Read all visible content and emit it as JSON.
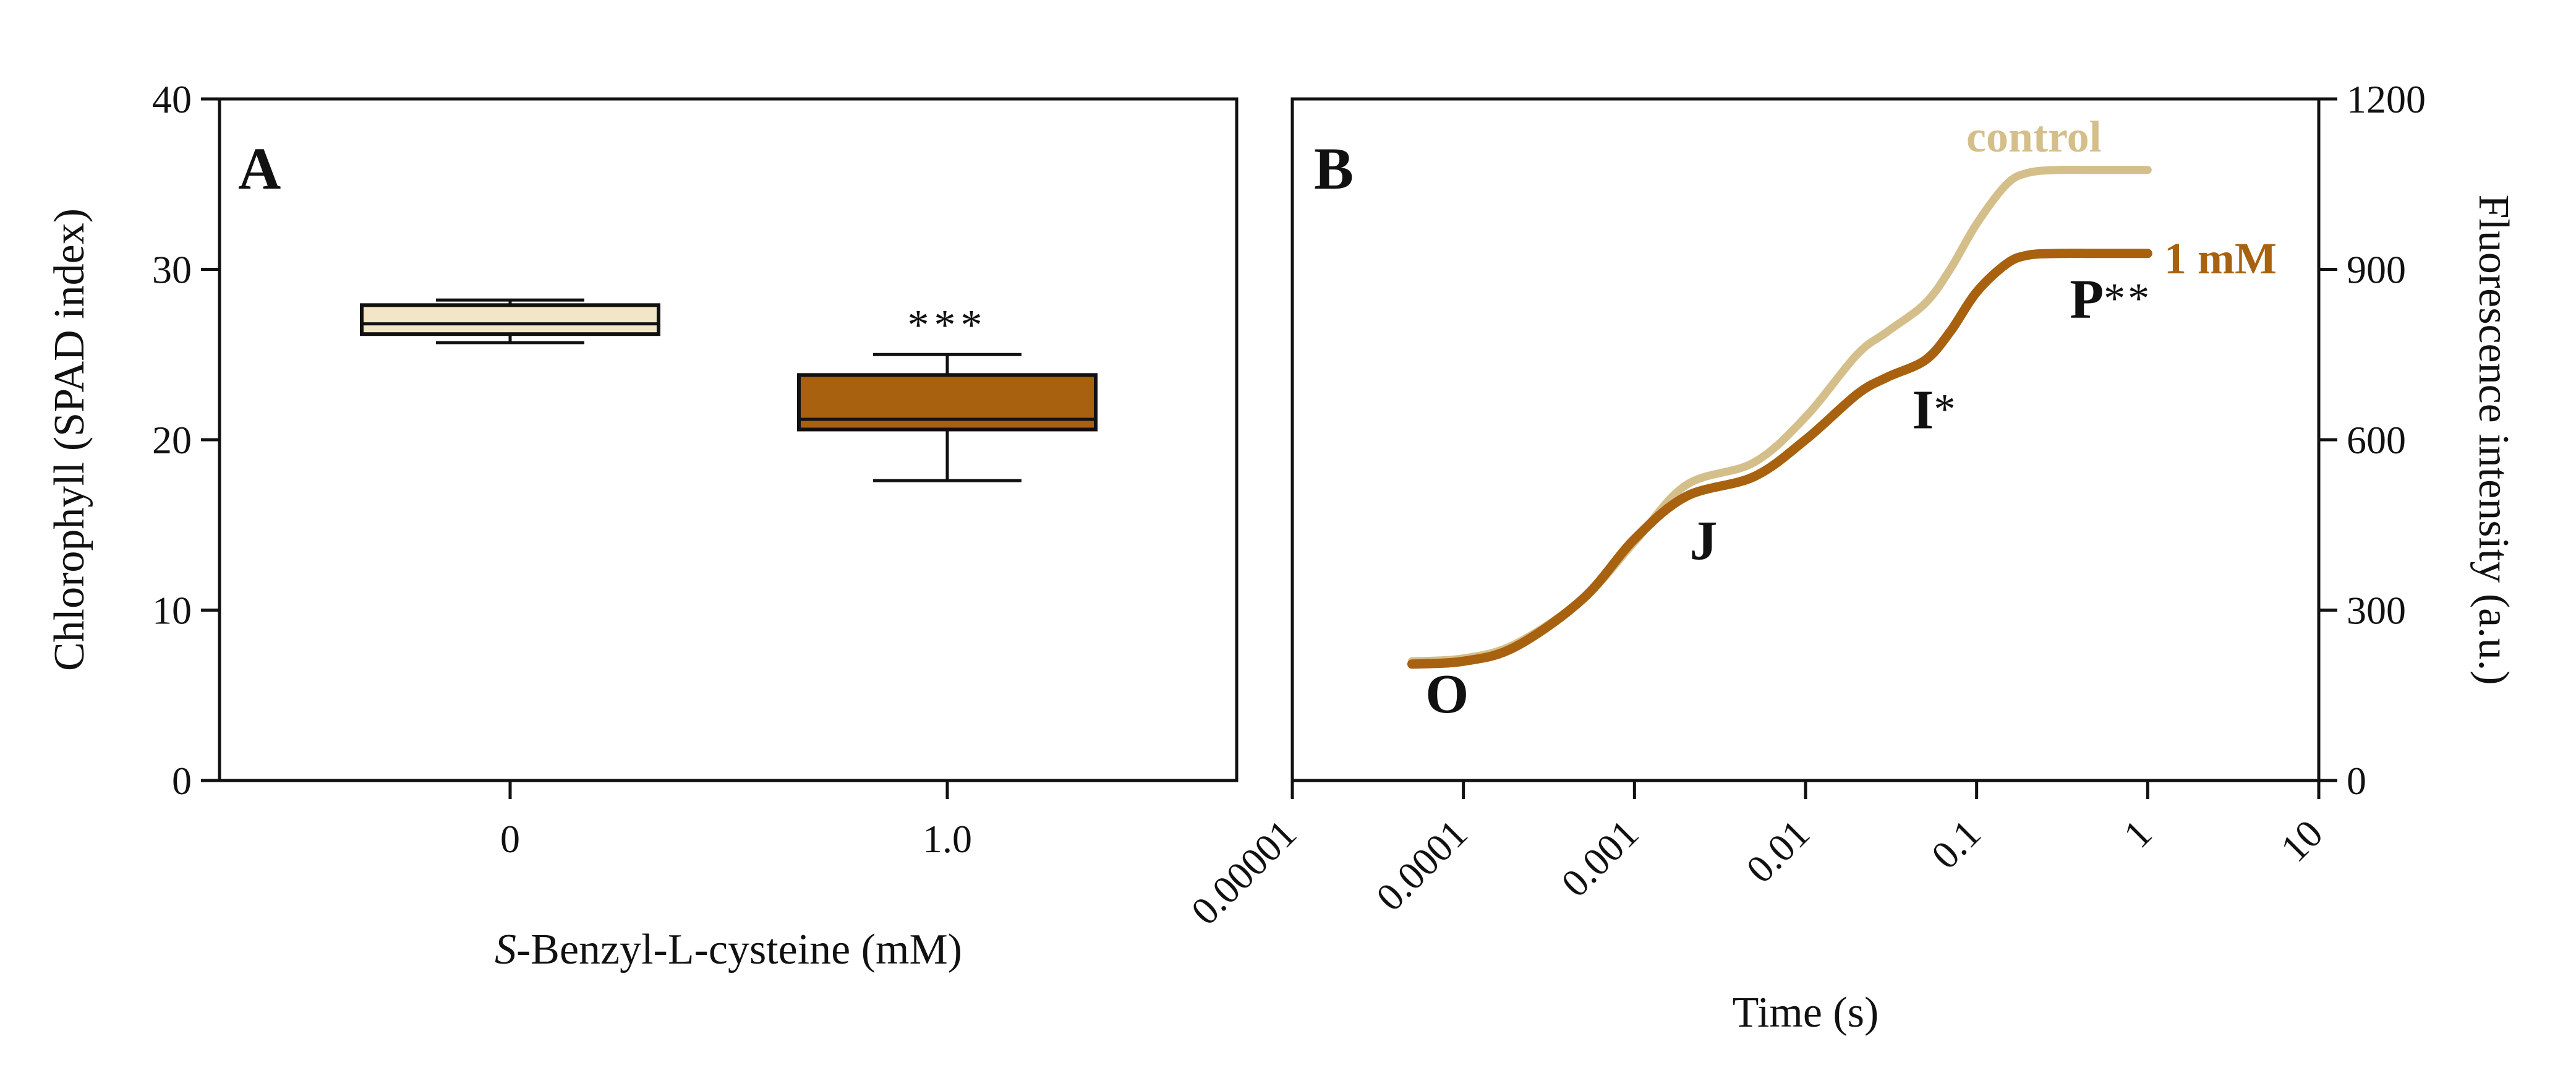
{
  "chart_data": [
    {
      "panel": "A",
      "type": "box",
      "xlabel_italic": "S",
      "xlabel_rest": "-Benzyl-L-cysteine (mM)",
      "ylabel": "Chlorophyll (SPAD index)",
      "ylim": [
        0,
        40
      ],
      "yticks": [
        0,
        10,
        20,
        30,
        40
      ],
      "categories": [
        "0",
        "1.0"
      ],
      "boxes": [
        {
          "category": "0",
          "min": 25.7,
          "q1": 26.2,
          "median": 26.8,
          "q3": 27.9,
          "max": 28.2,
          "color": "#f2e6c6",
          "significance": ""
        },
        {
          "category": "1.0",
          "min": 17.6,
          "q1": 20.6,
          "median": 21.2,
          "q3": 23.8,
          "max": 25.0,
          "color": "#a8620f",
          "significance": "***"
        }
      ]
    },
    {
      "panel": "B",
      "type": "line",
      "xscale": "log",
      "xlabel": "Time (s)",
      "ylabel": "Fluorescence intensity (a.u.)",
      "xlim": [
        1e-05,
        10
      ],
      "ylim": [
        0,
        1200
      ],
      "xtick_labels": [
        "0.00001",
        "0.0001",
        "0.001",
        "0.01",
        "0.1",
        "1",
        "10"
      ],
      "yticks": [
        0,
        300,
        600,
        900,
        1200
      ],
      "series": [
        {
          "name": "control",
          "color": "#d4bf8b",
          "x": [
            5e-05,
            0.0001,
            0.0002,
            0.0005,
            0.001,
            0.002,
            0.005,
            0.01,
            0.02,
            0.03,
            0.05,
            0.07,
            0.1,
            0.15,
            0.2,
            0.3,
            0.5,
            1
          ],
          "y": [
            210,
            215,
            240,
            320,
            420,
            520,
            560,
            640,
            750,
            790,
            840,
            900,
            980,
            1050,
            1070,
            1075,
            1075,
            1075
          ]
        },
        {
          "name": "1 mM",
          "color": "#a8620f",
          "x": [
            5e-05,
            0.0001,
            0.0002,
            0.0005,
            0.001,
            0.002,
            0.005,
            0.01,
            0.02,
            0.03,
            0.05,
            0.07,
            0.1,
            0.15,
            0.2,
            0.3,
            0.5,
            1
          ],
          "y": [
            205,
            210,
            235,
            320,
            425,
            500,
            535,
            600,
            680,
            710,
            740,
            790,
            860,
            910,
            925,
            928,
            928,
            928
          ]
        }
      ],
      "annotations": [
        {
          "text": "O",
          "stars": "",
          "x": 6e-05,
          "y": 120
        },
        {
          "text": "J",
          "stars": "",
          "x": 0.0021,
          "y": 390
        },
        {
          "text": "I",
          "stars": "*",
          "x": 0.042,
          "y": 620
        },
        {
          "text": "P",
          "stars": "**",
          "x": 0.35,
          "y": 815
        }
      ]
    }
  ]
}
